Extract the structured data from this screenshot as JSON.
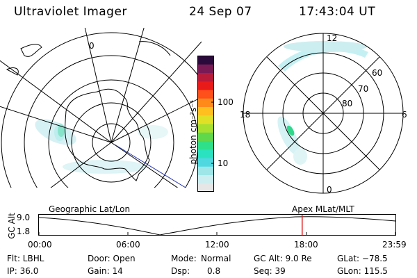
{
  "header": {
    "instrument": "Ultraviolet Imager",
    "date": "24 Sep 07",
    "time": "17:43:04 UT"
  },
  "left_map": {
    "label": "Geographic Lat/Lon",
    "meridian_label": "0"
  },
  "right_map": {
    "label": "Apex MLat/MLT",
    "mlt_labels": {
      "top": "12",
      "left": "18",
      "right": "6",
      "bottom": "0"
    },
    "lat_labels": [
      "60",
      "70",
      "80"
    ]
  },
  "colorbar": {
    "unit_label": "photon cm⁻²s⁻¹",
    "ticks": [
      "100",
      "10"
    ],
    "colors": [
      "#e6e6e6",
      "#cdeef0",
      "#9fe6e8",
      "#4fd8e0",
      "#2be2c0",
      "#2ee08a",
      "#5fd84c",
      "#a8e030",
      "#e0e026",
      "#ffbf1f",
      "#ff8a1a",
      "#ff4f1a",
      "#e81a1a",
      "#b81a3a",
      "#7a1a55",
      "#2a0a3a"
    ]
  },
  "timeline": {
    "ylabel": "GC Alt",
    "y_ticks": [
      "9.0",
      "1.8"
    ],
    "x_ticks": [
      "00:00",
      "06:00",
      "12:00",
      "18:00",
      "23:59"
    ],
    "marker_time_hours": 17.72
  },
  "info": {
    "filter": "Flt: LBHL",
    "door": "Door: Open",
    "mode_label": "Mode:",
    "mode_value": "Normal",
    "gc_alt": "GC Alt: 9.0 Re",
    "glat": "GLat: −78.5",
    "ip": "IP: 36.0",
    "gain": "Gain: 14",
    "dsp_label": "Dsp:",
    "dsp_value": "0.8",
    "seq": "Seq: 39",
    "glon": "GLon: 115.5"
  }
}
